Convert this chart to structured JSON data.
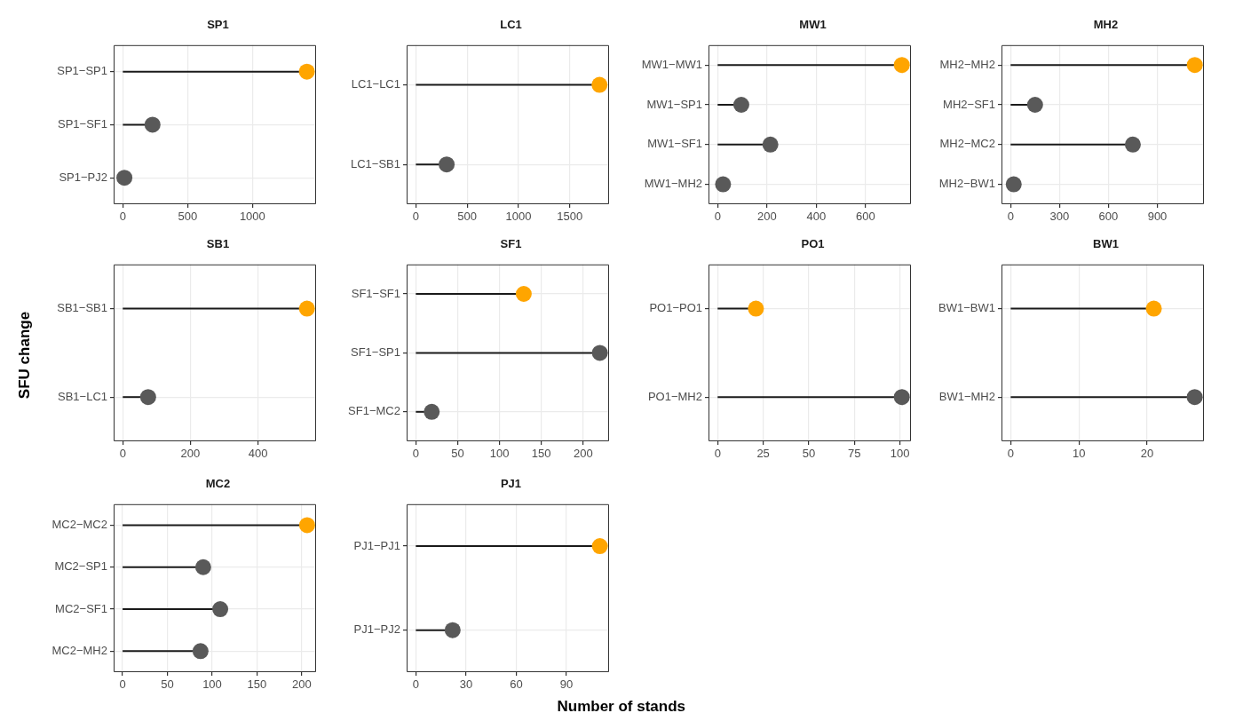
{
  "chart_data": [
    {
      "type": "lollipop",
      "title": "SP1",
      "orientation": "horizontal",
      "grid": true,
      "categories": [
        "SP1−SP1",
        "SP1−SF1",
        "SP1−PJ2"
      ],
      "values": [
        1420,
        229,
        12
      ],
      "colors": [
        "#ffa500",
        "#595959",
        "#595959"
      ],
      "xlim": [
        -71,
        1491
      ],
      "xticks": [
        0,
        500,
        1000
      ]
    },
    {
      "type": "lollipop",
      "title": "LC1",
      "orientation": "horizontal",
      "grid": true,
      "categories": [
        "LC1−LC1",
        "LC1−SB1"
      ],
      "values": [
        1790,
        300
      ],
      "colors": [
        "#ffa500",
        "#595959"
      ],
      "xlim": [
        -90,
        1883
      ],
      "xticks": [
        0,
        500,
        1000,
        1500
      ]
    },
    {
      "type": "lollipop",
      "title": "MW1",
      "orientation": "horizontal",
      "grid": true,
      "categories": [
        "MW1−MW1",
        "MW1−SP1",
        "MW1−SF1",
        "MW1−MH2"
      ],
      "values": [
        747,
        96,
        214,
        22
      ],
      "colors": [
        "#ffa500",
        "#595959",
        "#595959",
        "#595959"
      ],
      "xlim": [
        -37,
        784
      ],
      "xticks": [
        0,
        200,
        400,
        600
      ]
    },
    {
      "type": "lollipop",
      "title": "MH2",
      "orientation": "horizontal",
      "grid": true,
      "categories": [
        "MH2−MH2",
        "MH2−SF1",
        "MH2−MC2",
        "MH2−BW1"
      ],
      "values": [
        1130,
        150,
        750,
        19
      ],
      "colors": [
        "#ffa500",
        "#595959",
        "#595959",
        "#595959"
      ],
      "xlim": [
        -56,
        1186
      ],
      "xticks": [
        0,
        300,
        600,
        900
      ]
    },
    {
      "type": "lollipop",
      "title": "SB1",
      "orientation": "horizontal",
      "grid": true,
      "ylabel": "SFU change",
      "categories": [
        "SB1−SB1",
        "SB1−LC1"
      ],
      "values": [
        545,
        75
      ],
      "colors": [
        "#ffa500",
        "#595959"
      ],
      "xlim": [
        -27,
        572
      ],
      "xticks": [
        0,
        200,
        400
      ]
    },
    {
      "type": "lollipop",
      "title": "SF1",
      "orientation": "horizontal",
      "grid": true,
      "categories": [
        "SF1−SF1",
        "SF1−SP1",
        "SF1−MC2"
      ],
      "values": [
        129,
        220,
        19
      ],
      "colors": [
        "#ffa500",
        "#595959",
        "#595959"
      ],
      "xlim": [
        -11,
        231
      ],
      "xticks": [
        0,
        50,
        100,
        150,
        200
      ]
    },
    {
      "type": "lollipop",
      "title": "PO1",
      "orientation": "horizontal",
      "grid": true,
      "categories": [
        "PO1−PO1",
        "PO1−MH2"
      ],
      "values": [
        21,
        101
      ],
      "colors": [
        "#ffa500",
        "#595959"
      ],
      "xlim": [
        -5,
        106
      ],
      "xticks": [
        0,
        25,
        50,
        75,
        100
      ]
    },
    {
      "type": "lollipop",
      "title": "BW1",
      "orientation": "horizontal",
      "grid": true,
      "categories": [
        "BW1−BW1",
        "BW1−MH2"
      ],
      "values": [
        21,
        27
      ],
      "colors": [
        "#ffa500",
        "#595959"
      ],
      "xlim": [
        -1.35,
        28.35
      ],
      "xticks": [
        0,
        10,
        20
      ]
    },
    {
      "type": "lollipop",
      "title": "MC2",
      "orientation": "horizontal",
      "grid": true,
      "categories": [
        "MC2−MC2",
        "MC2−SP1",
        "MC2−SF1",
        "MC2−MH2"
      ],
      "values": [
        206,
        90,
        109,
        87
      ],
      "colors": [
        "#ffa500",
        "#595959",
        "#595959",
        "#595959"
      ],
      "xlim": [
        -10,
        216
      ],
      "xticks": [
        0,
        50,
        100,
        150,
        200
      ]
    },
    {
      "type": "lollipop",
      "title": "PJ1",
      "orientation": "horizontal",
      "grid": true,
      "xlabel": "Number of stands",
      "categories": [
        "PJ1−PJ1",
        "PJ1−PJ2"
      ],
      "values": [
        110,
        22
      ],
      "colors": [
        "#ffa500",
        "#595959"
      ],
      "xlim": [
        -5.5,
        115.5
      ],
      "xticks": [
        0,
        30,
        60,
        90
      ]
    }
  ]
}
